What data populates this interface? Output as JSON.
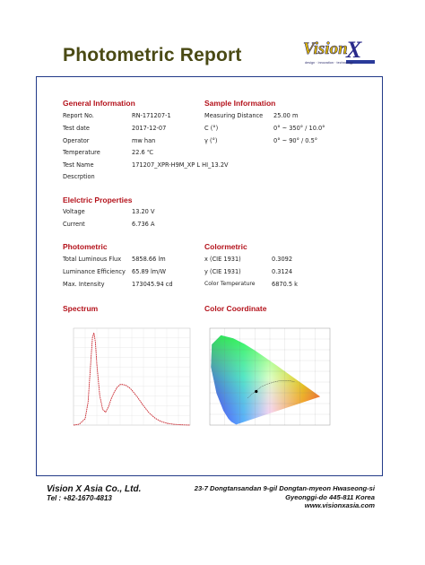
{
  "title": "Photometric Report",
  "logo": {
    "name": "Vision",
    "mark": "X",
    "tagline": "design · innovation · technology"
  },
  "general": {
    "heading": "General Information",
    "rows": [
      {
        "label": "Report No.",
        "value": "RN-171207-1"
      },
      {
        "label": "Test date",
        "value": "2017-12-07"
      },
      {
        "label": "Operator",
        "value": "mw han"
      },
      {
        "label": "Temperature",
        "value": "22.6 ℃"
      },
      {
        "label": "Test Name",
        "value": "171207_XPR-H9M_XP L HI_13.2V"
      },
      {
        "label": "Descrption",
        "value": ""
      }
    ]
  },
  "sample": {
    "heading": "Sample Information",
    "rows": [
      {
        "label": "Measuring Distance",
        "value": "25.00 m"
      },
      {
        "label": "C (°)",
        "value": "0° ~ 350° / 10.0°"
      },
      {
        "label": "γ (°)",
        "value": "0° ~ 90° / 0.5°"
      }
    ]
  },
  "electric": {
    "heading": "Elelctric Properties",
    "rows": [
      {
        "label": "Voltage",
        "value": "13.20 V"
      },
      {
        "label": "Current",
        "value": "6.736 A"
      }
    ]
  },
  "photometric": {
    "heading": "Photometric",
    "rows": [
      {
        "label": "Total Luminous Flux",
        "value": "5858.66 lm"
      },
      {
        "label": "Luminance Efficiency",
        "value": "65.89 lm/W"
      },
      {
        "label": "Max. Intensity",
        "value": "173045.94 cd"
      }
    ]
  },
  "colormetric": {
    "heading": "Colormetric",
    "rows": [
      {
        "label": "x (CIE 1931)",
        "value": "0.3092"
      },
      {
        "label": "y (CIE 1931)",
        "value": "0.3124"
      },
      {
        "label": "Color Temperature",
        "value": "6870.5 k"
      }
    ]
  },
  "spectrum": {
    "heading": "Spectrum",
    "color": "#c8222a"
  },
  "coordinate": {
    "heading": "Color Coordinate"
  },
  "chart_data": [
    {
      "type": "line",
      "x": [
        380,
        400,
        420,
        430,
        440,
        445,
        450,
        455,
        460,
        470,
        480,
        490,
        500,
        510,
        520,
        530,
        540,
        550,
        560,
        570,
        580,
        590,
        600,
        620,
        640,
        660,
        680,
        700,
        720,
        740,
        760,
        780
      ],
      "series": [
        {
          "values": [
            0.0,
            0.01,
            0.07,
            0.25,
            0.72,
            0.95,
            1.0,
            0.9,
            0.66,
            0.32,
            0.17,
            0.14,
            0.2,
            0.29,
            0.36,
            0.41,
            0.44,
            0.44,
            0.43,
            0.41,
            0.38,
            0.34,
            0.3,
            0.21,
            0.13,
            0.075,
            0.04,
            0.02,
            0.01,
            0.005,
            0.002,
            0.0
          ]
        }
      ],
      "xlim": [
        380,
        780
      ],
      "ylim": [
        0,
        1.05
      ],
      "grid": true
    },
    {
      "type": "scatter",
      "x": [
        0.3092
      ],
      "y": [
        0.3124
      ],
      "xlim": [
        0,
        0.8
      ],
      "ylim": [
        0,
        0.9
      ],
      "grid": true
    }
  ],
  "footer": {
    "company": "Vision X Asia Co., Ltd.",
    "tel": "Tel : +82-1670-4813",
    "address1": "23-7 Dongtansandan 9-gil Dongtan-myeon Hwaseong-si",
    "address2": "Gyeonggi-do 445-811 Korea",
    "website": "www.visionxasia.com"
  }
}
